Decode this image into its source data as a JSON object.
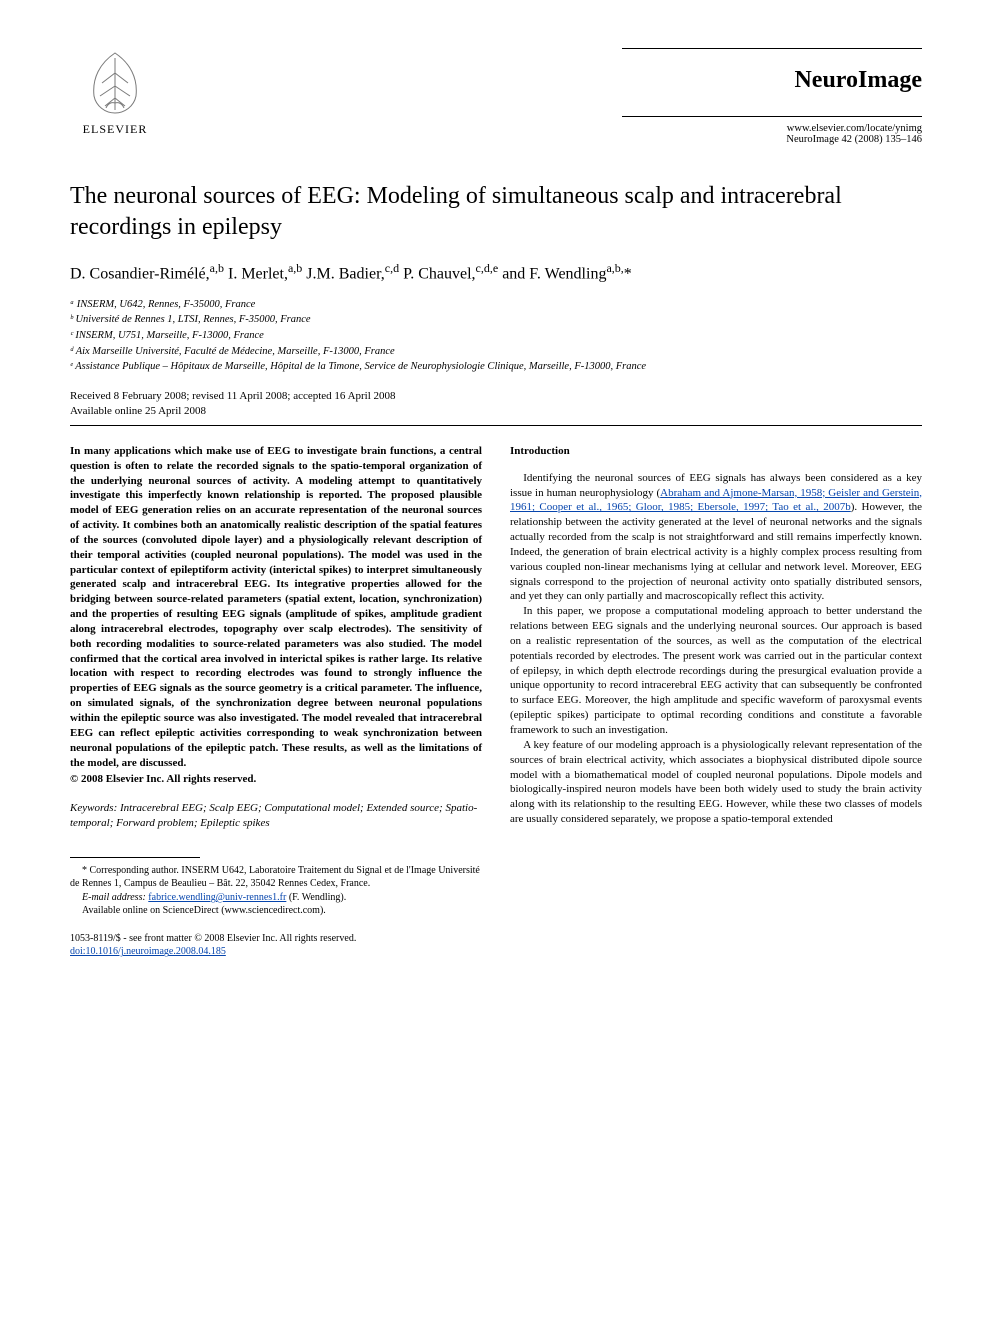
{
  "header": {
    "publisher_label": "ELSEVIER",
    "journal_name": "NeuroImage",
    "journal_url": "www.elsevier.com/locate/ynimg",
    "journal_citation": "NeuroImage 42 (2008) 135–146"
  },
  "article": {
    "title": "The neuronal sources of EEG: Modeling of simultaneous scalp and intracerebral recordings in epilepsy",
    "authors_html": "D. Cosandier-Rimélé,<sup>a,b</sup> I. Merlet,<sup>a,b</sup> J.M. Badier,<sup>c,d</sup> P. Chauvel,<sup>c,d,e</sup> and F. Wendling<sup>a,b,</sup>*",
    "affiliations": [
      "ᵃ INSERM, U642, Rennes, F-35000, France",
      "ᵇ Université de Rennes 1, LTSI, Rennes, F-35000, France",
      "ᶜ INSERM, U751, Marseille, F-13000, France",
      "ᵈ Aix Marseille Université, Faculté de Médecine, Marseille, F-13000, France",
      "ᵉ Assistance Publique – Hôpitaux de Marseille, Hôpital de la Timone, Service de Neurophysiologie Clinique, Marseille, F-13000, France"
    ],
    "received": "Received 8 February 2008; revised 11 April 2008; accepted 16 April 2008",
    "available": "Available online 25 April 2008"
  },
  "abstract": {
    "text": "In many applications which make use of EEG to investigate brain functions, a central question is often to relate the recorded signals to the spatio-temporal organization of the underlying neuronal sources of activity. A modeling attempt to quantitatively investigate this imperfectly known relationship is reported. The proposed plausible model of EEG generation relies on an accurate representation of the neuronal sources of activity. It combines both an anatomically realistic description of the spatial features of the sources (convoluted dipole layer) and a physiologically relevant description of their temporal activities (coupled neuronal populations). The model was used in the particular context of epileptiform activity (interictal spikes) to interpret simultaneously generated scalp and intracerebral EEG. Its integrative properties allowed for the bridging between source-related parameters (spatial extent, location, synchronization) and the properties of resulting EEG signals (amplitude of spikes, amplitude gradient along intracerebral electrodes, topography over scalp electrodes). The sensitivity of both recording modalities to source-related parameters was also studied. The model confirmed that the cortical area involved in interictal spikes is rather large. Its relative location with respect to recording electrodes was found to strongly influence the properties of EEG signals as the source geometry is a critical parameter. The influence, on simulated signals, of the synchronization degree between neuronal populations within the epileptic source was also investigated. The model revealed that intracerebral EEG can reflect epileptic activities corresponding to weak synchronization between neuronal populations of the epileptic patch. These results, as well as the limitations of the model, are discussed.",
    "copyright": "© 2008 Elsevier Inc. All rights reserved."
  },
  "keywords": {
    "label": "Keywords:",
    "text": " Intracerebral EEG; Scalp EEG; Computational model; Extended source; Spatio-temporal; Forward problem; Epileptic spikes"
  },
  "introduction": {
    "heading": "Introduction",
    "p1_pre": "Identifying the neuronal sources of EEG signals has always been considered as a key issue in human neurophysiology (",
    "p1_refs": "Abraham and Ajmone-Marsan, 1958; Geisler and Gerstein, 1961; Cooper et al., 1965; Gloor, 1985; Ebersole, 1997; Tao et al., 2007b",
    "p1_post": "). However, the relationship between the activity generated at the level of neuronal networks and the signals actually recorded from the scalp is not straightforward and still remains imperfectly known. Indeed, the generation of brain electrical activity is a highly complex process resulting from various coupled non-linear mechanisms lying at cellular and network level. Moreover, EEG signals correspond to the projection of neuronal activity onto spatially distributed sensors, and yet they can only partially and macroscopically reflect this activity.",
    "p2": "In this paper, we propose a computational modeling approach to better understand the relations between EEG signals and the underlying neuronal sources. Our approach is based on a realistic representation of the sources, as well as the computation of the electrical potentials recorded by electrodes. The present work was carried out in the particular context of epilepsy, in which depth electrode recordings during the presurgical evaluation provide a unique opportunity to record intracerebral EEG activity that can subsequently be confronted to surface EEG. Moreover, the high amplitude and specific waveform of paroxysmal events (epileptic spikes) participate to optimal recording conditions and constitute a favorable framework to such an investigation.",
    "p3": "A key feature of our modeling approach is a physiologically relevant representation of the sources of brain electrical activity, which associates a biophysical distributed dipole source model with a biomathematical model of coupled neuronal populations. Dipole models and biologically-inspired neuron models have been both widely used to study the brain activity along with its relationship to the resulting EEG. However, while these two classes of models are usually considered separately, we propose a spatio-temporal extended"
  },
  "footnotes": {
    "corresponding": "* Corresponding author. INSERM U642, Laboratoire Traitement du Signal et de l'Image Université de Rennes 1, Campus de Beaulieu – Bât. 22, 35042 Rennes Cedex, France.",
    "email_label": "E-mail address:",
    "email": "fabrice.wendling@univ-rennes1.fr",
    "email_suffix": " (F. Wendling).",
    "available": "Available online on ScienceDirect (www.sciencedirect.com)."
  },
  "bottom": {
    "front_matter": "1053-8119/$ - see front matter © 2008 Elsevier Inc. All rights reserved.",
    "doi": "doi:10.1016/j.neuroimage.2008.04.185"
  },
  "colors": {
    "link": "#0645ad",
    "text": "#000000",
    "bg": "#ffffff"
  }
}
